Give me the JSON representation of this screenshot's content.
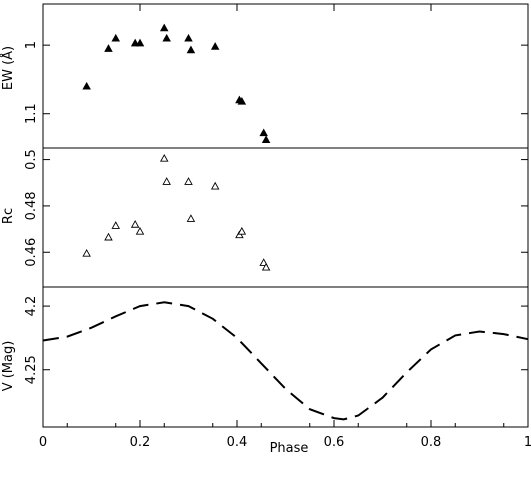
{
  "chart_data": {
    "type": "scatter",
    "xlabel": "Phase",
    "xlim": [
      0,
      1
    ],
    "x_ticks": [
      "0",
      "0.2",
      "0.4",
      "0.6",
      "0.8",
      "1"
    ],
    "panels": [
      {
        "id": "ew",
        "ylabel": "EW (Å)",
        "ylim": [
          0.94,
          1.15
        ],
        "inverted": true,
        "y_ticks": [
          {
            "value": 1.0,
            "label": "1"
          },
          {
            "value": 1.1,
            "label": "1.1"
          }
        ],
        "marker": "filled-triangle",
        "x": [
          0.09,
          0.135,
          0.15,
          0.19,
          0.2,
          0.25,
          0.255,
          0.3,
          0.305,
          0.355,
          0.405,
          0.41,
          0.455,
          0.46
        ],
        "y": [
          1.06,
          1.005,
          0.99,
          0.997,
          0.997,
          0.975,
          0.99,
          0.99,
          1.007,
          1.002,
          1.08,
          1.082,
          1.128,
          1.138
        ]
      },
      {
        "id": "rc",
        "ylabel": "Rc",
        "ylim": [
          0.445,
          0.505
        ],
        "inverted": false,
        "y_ticks": [
          {
            "value": 0.46,
            "label": "0.46"
          },
          {
            "value": 0.48,
            "label": "0.48"
          },
          {
            "value": 0.5,
            "label": "0.5"
          }
        ],
        "marker": "open-triangle",
        "x": [
          0.09,
          0.135,
          0.15,
          0.19,
          0.2,
          0.25,
          0.255,
          0.3,
          0.305,
          0.355,
          0.405,
          0.41,
          0.455,
          0.46
        ],
        "y": [
          0.4595,
          0.4665,
          0.4715,
          0.472,
          0.469,
          0.5005,
          0.4905,
          0.4905,
          0.4745,
          0.4885,
          0.4675,
          0.469,
          0.4555,
          0.4535
        ]
      },
      {
        "id": "v",
        "ylabel": "V (Mag)",
        "ylim": [
          4.185,
          4.295
        ],
        "inverted": true,
        "y_ticks": [
          {
            "value": 4.2,
            "label": "4.2"
          },
          {
            "value": 4.25,
            "label": "4.25"
          }
        ],
        "type": "line",
        "line_style": "dashed",
        "x": [
          0.0,
          0.05,
          0.1,
          0.15,
          0.2,
          0.25,
          0.3,
          0.35,
          0.4,
          0.45,
          0.5,
          0.55,
          0.6,
          0.62,
          0.65,
          0.7,
          0.75,
          0.8,
          0.85,
          0.9,
          0.95,
          1.0
        ],
        "y": [
          4.227,
          4.224,
          4.217,
          4.208,
          4.2,
          4.197,
          4.2,
          4.21,
          4.225,
          4.245,
          4.265,
          4.281,
          4.288,
          4.289,
          4.286,
          4.272,
          4.252,
          4.234,
          4.223,
          4.22,
          4.222,
          4.226
        ]
      }
    ],
    "colors": {
      "ink": "#000000",
      "background": "#ffffff"
    }
  }
}
